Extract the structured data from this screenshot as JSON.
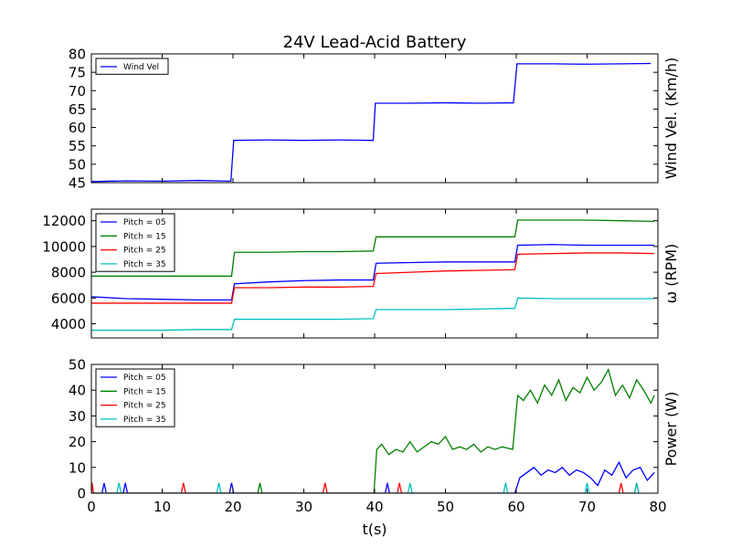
{
  "chart_data": [
    {
      "type": "line",
      "title": "24V Lead-Acid Battery",
      "ylabel": "Wind Vel. (Km/h)",
      "xlim": [
        0,
        80
      ],
      "ylim": [
        45,
        80
      ],
      "yticks": [
        45,
        50,
        55,
        60,
        65,
        70,
        75,
        80
      ],
      "legend": "top-left",
      "series": [
        {
          "name": "Wind Vel",
          "color": "#0000ff",
          "x": [
            0,
            5,
            10,
            15,
            19.7,
            20.1,
            25,
            30,
            35,
            39.8,
            40.1,
            45,
            50,
            55,
            59.6,
            60.1,
            65,
            70,
            75,
            79
          ],
          "y": [
            45.3,
            45.5,
            45.4,
            45.6,
            45.4,
            56.5,
            56.6,
            56.5,
            56.6,
            56.5,
            66.6,
            66.6,
            66.7,
            66.6,
            66.7,
            77.3,
            77.3,
            77.2,
            77.3,
            77.4
          ]
        }
      ]
    },
    {
      "type": "line",
      "ylabel": "ω (RPM)",
      "xlim": [
        0,
        80
      ],
      "ylim": [
        2900,
        12900
      ],
      "yticks": [
        4000,
        6000,
        8000,
        10000,
        12000
      ],
      "legend": "top-left",
      "series": [
        {
          "name": "Pitch = 05",
          "color": "#0000ff",
          "x": [
            0,
            5,
            10,
            15,
            19.8,
            20.2,
            25,
            30,
            35,
            39.8,
            40.2,
            45,
            50,
            55,
            59.8,
            60.2,
            65,
            70,
            75,
            79.5
          ],
          "y": [
            6100,
            5950,
            5900,
            5850,
            5850,
            7100,
            7250,
            7350,
            7400,
            7400,
            8700,
            8750,
            8800,
            8800,
            8800,
            10100,
            10150,
            10100,
            10100,
            10100
          ]
        },
        {
          "name": "Pitch = 15",
          "color": "#008000",
          "x": [
            0,
            5,
            10,
            15,
            19.8,
            20.2,
            25,
            30,
            35,
            39.8,
            40.2,
            45,
            50,
            55,
            59.8,
            60.2,
            65,
            70,
            75,
            79.5
          ],
          "y": [
            7700,
            7700,
            7700,
            7700,
            7700,
            9550,
            9550,
            9600,
            9600,
            9650,
            10750,
            10750,
            10750,
            10750,
            10750,
            12050,
            12050,
            12050,
            12000,
            11950
          ]
        },
        {
          "name": "Pitch = 25",
          "color": "#ff0000",
          "x": [
            0,
            5,
            10,
            15,
            19.8,
            20.2,
            25,
            30,
            35,
            39.8,
            40.2,
            45,
            50,
            55,
            59.8,
            60.2,
            65,
            70,
            75,
            79.5
          ],
          "y": [
            5600,
            5600,
            5600,
            5600,
            5600,
            6800,
            6800,
            6850,
            6850,
            6900,
            7900,
            8000,
            8100,
            8150,
            8200,
            9400,
            9450,
            9500,
            9500,
            9450
          ]
        },
        {
          "name": "Pitch = 35",
          "color": "#00bfbf",
          "x": [
            0,
            5,
            10,
            15,
            19.8,
            20.2,
            25,
            30,
            35,
            39.8,
            40.2,
            45,
            50,
            55,
            59.8,
            60.2,
            65,
            70,
            75,
            79.5
          ],
          "y": [
            3500,
            3500,
            3500,
            3550,
            3550,
            4350,
            4350,
            4350,
            4350,
            4400,
            5100,
            5100,
            5100,
            5150,
            5200,
            6000,
            5950,
            5950,
            5950,
            5950
          ]
        }
      ]
    },
    {
      "type": "line",
      "xlabel": "t(s)",
      "ylabel": "Power (W)",
      "xlim": [
        0,
        80
      ],
      "ylim": [
        0,
        50
      ],
      "xticks": [
        0,
        10,
        20,
        30,
        40,
        50,
        60,
        70,
        80
      ],
      "yticks": [
        0,
        10,
        20,
        30,
        40,
        50
      ],
      "legend": "top-left",
      "series": [
        {
          "name": "Pitch = 05",
          "color": "#0000ff",
          "x": [
            0,
            1.5,
            1.8,
            2.1,
            4.5,
            4.8,
            5.1,
            19.5,
            19.8,
            20.1,
            41.5,
            41.8,
            42.1,
            59.8,
            60.5,
            61.5,
            62.5,
            63.5,
            64.5,
            65.5,
            66.5,
            67.5,
            68.5,
            69.5,
            70.5,
            71.5,
            72.5,
            73.5,
            74.5,
            75.5,
            76.5,
            77.5,
            78.5,
            79.5
          ],
          "y": [
            0,
            0,
            4,
            0,
            0,
            4,
            0,
            0,
            4,
            0,
            0,
            4,
            0,
            0,
            6,
            8,
            10,
            7,
            9,
            8,
            10,
            7,
            9,
            8,
            6,
            3,
            9,
            7,
            12,
            6,
            9,
            10,
            5,
            8
          ]
        },
        {
          "name": "Pitch = 15",
          "color": "#008000",
          "x": [
            0,
            23.5,
            23.8,
            24.1,
            39.9,
            40.3,
            41,
            42,
            43,
            44,
            45,
            46,
            47,
            48,
            49,
            50,
            51,
            52,
            53,
            54,
            55,
            56,
            57,
            58,
            59.5,
            60.2,
            61,
            62,
            63,
            64,
            65,
            66,
            67,
            68,
            69,
            70,
            71,
            72,
            73,
            74,
            75,
            76,
            77,
            78,
            79,
            79.5
          ],
          "y": [
            0,
            0,
            4,
            0,
            0,
            17,
            19,
            15,
            17,
            16,
            20,
            16,
            18,
            20,
            19,
            22,
            17,
            18,
            17,
            19,
            16,
            18,
            17,
            18,
            17,
            38,
            36,
            40,
            35,
            42,
            38,
            44,
            36,
            41,
            39,
            45,
            40,
            43,
            48,
            38,
            42,
            37,
            44,
            40,
            35,
            38
          ]
        },
        {
          "name": "Pitch = 25",
          "color": "#ff0000",
          "x": [
            0,
            0.1,
            0.3,
            0.6,
            12.7,
            13,
            13.3,
            32.7,
            33,
            33.3,
            43.2,
            43.5,
            43.8,
            74.5,
            74.8,
            75.1,
            76.7,
            77,
            77.3
          ],
          "y": [
            0,
            4,
            0,
            0,
            0,
            4,
            0,
            0,
            4,
            0,
            0,
            4,
            0,
            0,
            4,
            0,
            0,
            4,
            0
          ]
        },
        {
          "name": "Pitch = 35",
          "color": "#00bfbf",
          "x": [
            0,
            3.6,
            3.9,
            4.2,
            17.7,
            18,
            18.3,
            44.7,
            45,
            45.3,
            58.2,
            58.5,
            58.8,
            69.7,
            70,
            70.3,
            76.7,
            77,
            77.3
          ],
          "y": [
            0,
            0,
            4,
            0,
            0,
            4,
            0,
            0,
            4,
            0,
            0,
            4,
            0,
            0,
            4,
            0,
            0,
            4,
            0
          ]
        }
      ]
    }
  ]
}
